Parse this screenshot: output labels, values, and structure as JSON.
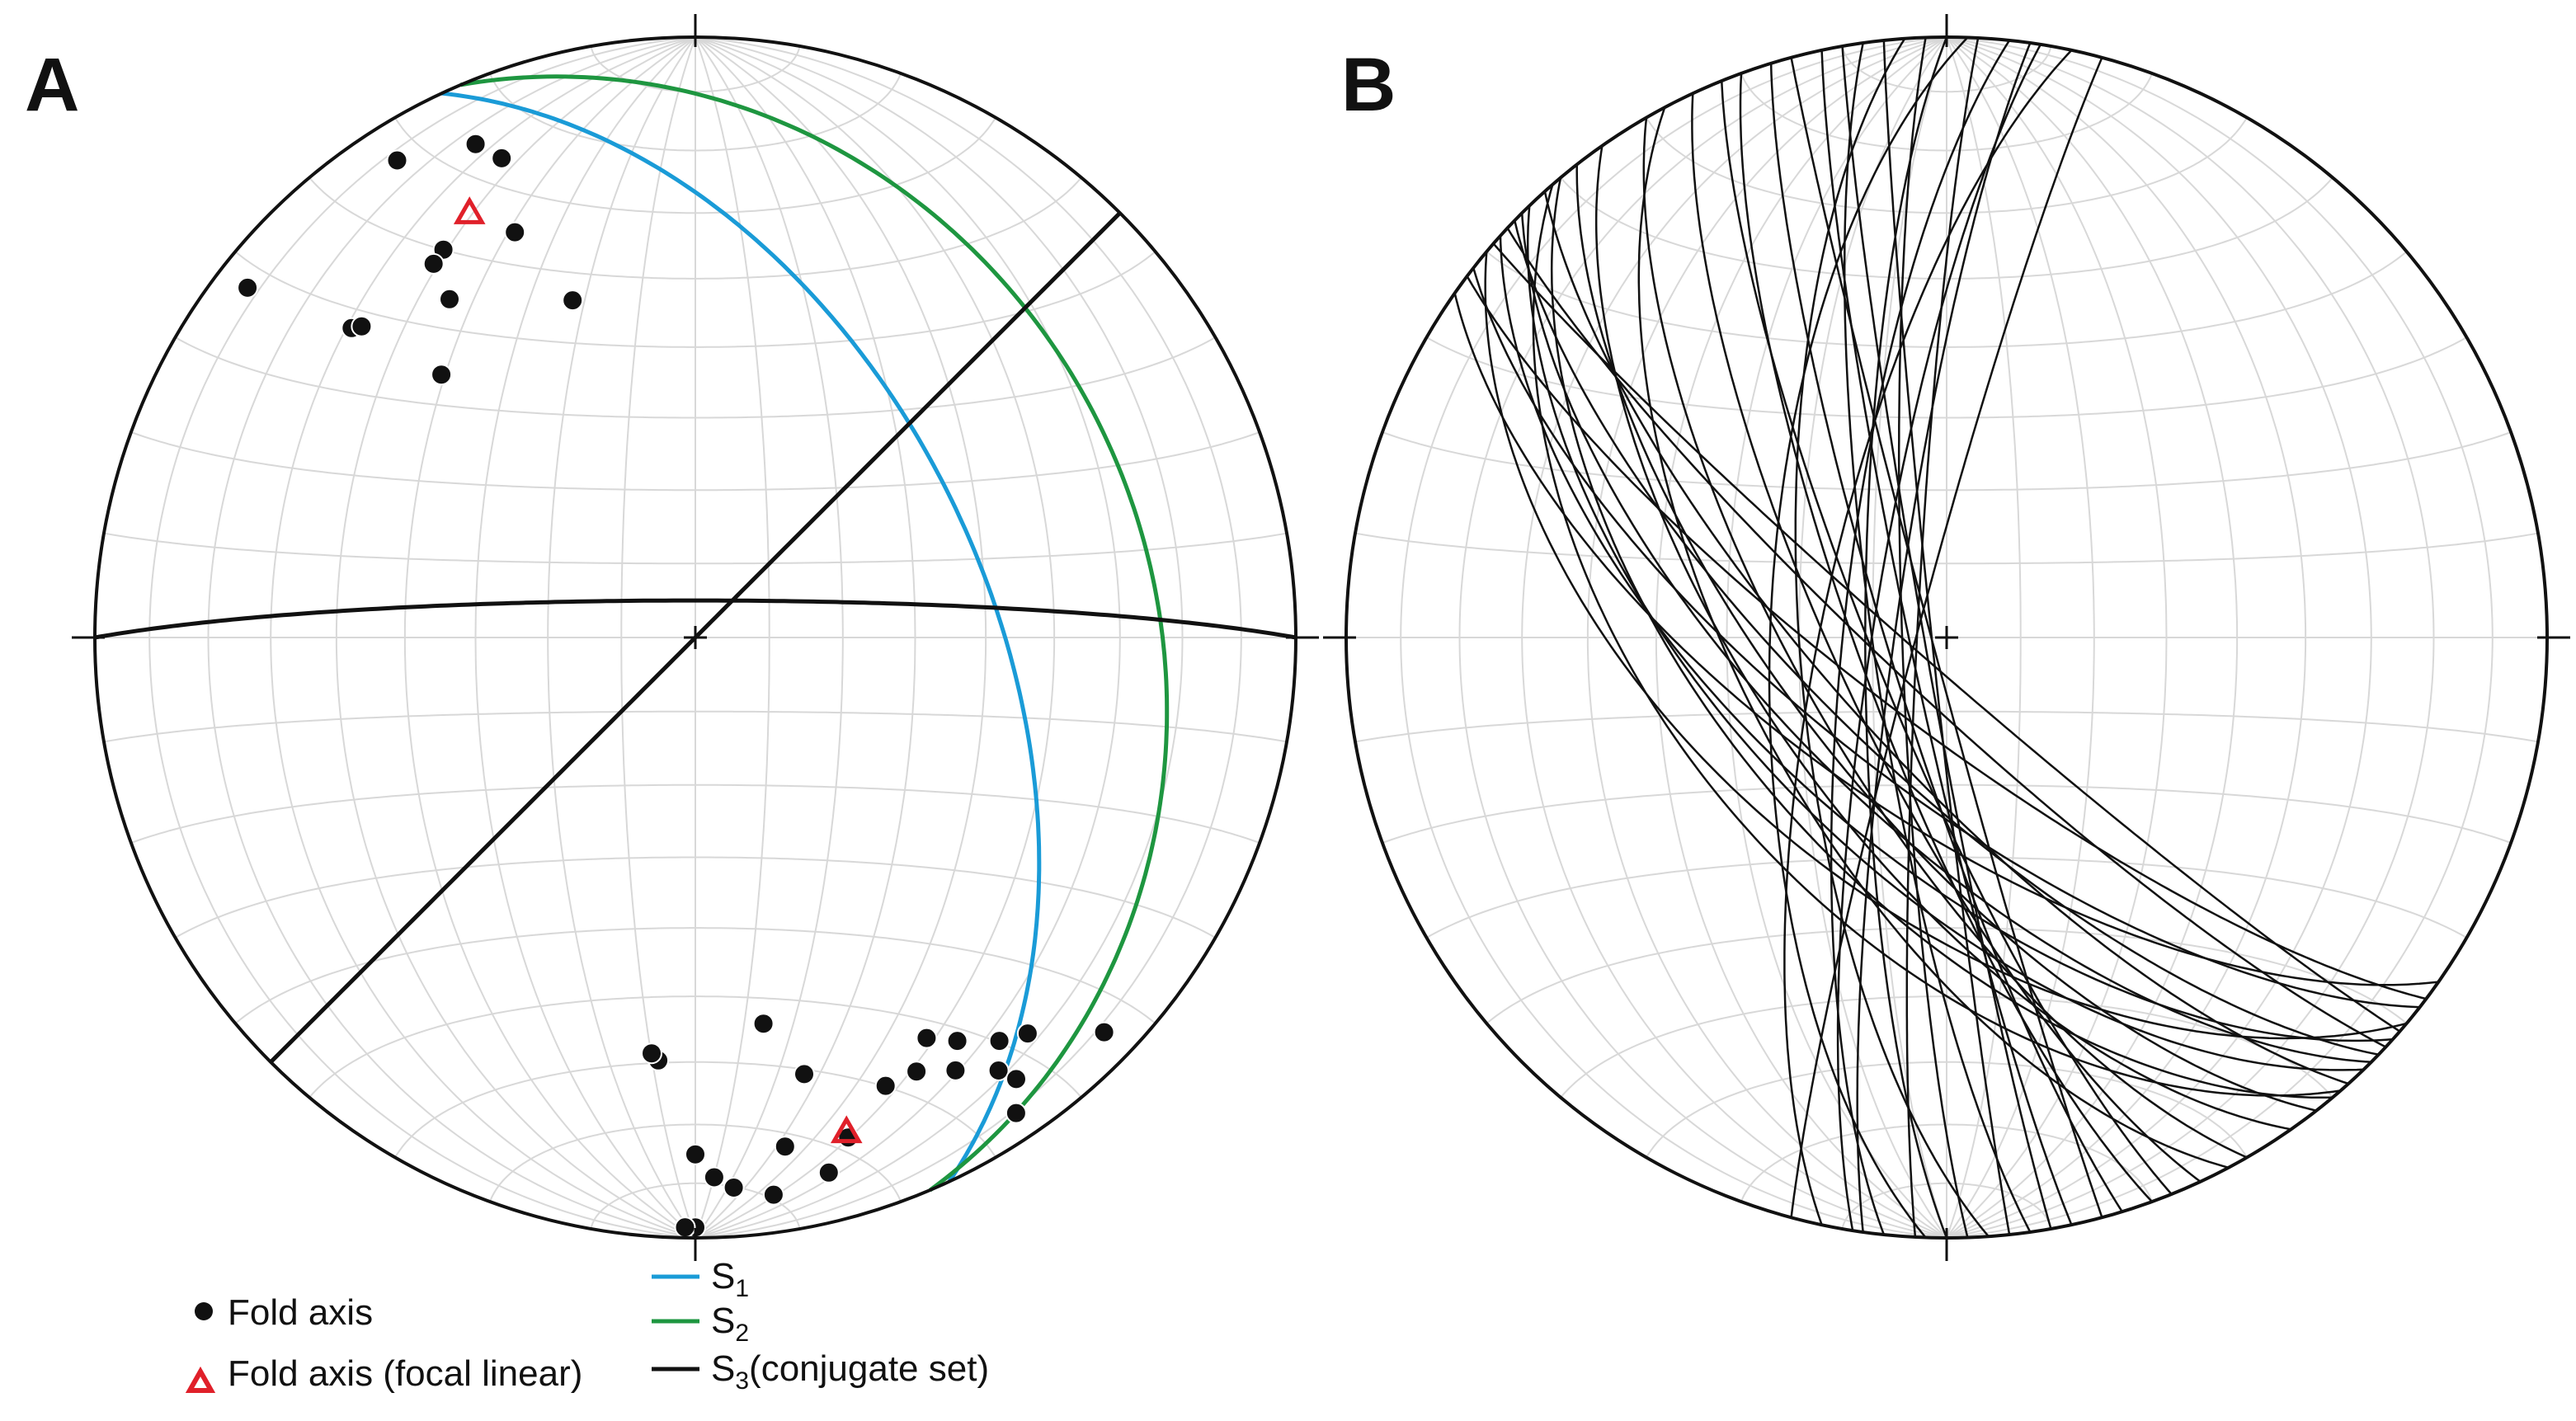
{
  "panels": [
    {
      "id": "A",
      "label": "A"
    },
    {
      "id": "B",
      "label": "B"
    }
  ],
  "legend": {
    "fold_axis": "Fold axis",
    "fold_axis_focal": "Fold axis (focal linear)",
    "s1": {
      "main": "S",
      "sub": "1"
    },
    "s2": {
      "main": "S",
      "sub": "2"
    },
    "s3": {
      "main": "S",
      "sub": "3",
      "suffix": "(conjugate set)"
    }
  },
  "colors": {
    "s1": "#1a9bd7",
    "s2": "#1e9640",
    "s3": "#111111",
    "fold_axis": "#111111",
    "focal": "#e0202a",
    "grid": "#d8d8d8"
  },
  "panel_a": {
    "planes": [
      {
        "name": "S1",
        "strike": 335,
        "dip": 50
      },
      {
        "name": "S2",
        "strike": 337,
        "dip": 25
      },
      {
        "name": "S3a",
        "strike": 270,
        "dip": 85
      },
      {
        "name": "S3b",
        "strike": 225,
        "dip": 90
      }
    ],
    "fold_axes": [
      {
        "trend": 328,
        "plunge": 7
      },
      {
        "trend": 336,
        "plunge": 11
      },
      {
        "trend": 338,
        "plunge": 15
      },
      {
        "trend": 327,
        "plunge": 24
      },
      {
        "trend": 324,
        "plunge": 31
      },
      {
        "trend": 316,
        "plunge": 39
      },
      {
        "trend": 336,
        "plunge": 27
      },
      {
        "trend": 340,
        "plunge": 40
      },
      {
        "trend": 325,
        "plunge": 25
      },
      {
        "trend": 312,
        "plunge": 24
      },
      {
        "trend": 313,
        "plunge": 25
      },
      {
        "trend": 308,
        "plunge": 6
      },
      {
        "trend": 185,
        "plunge": 30
      },
      {
        "trend": 186,
        "plunge": 31
      },
      {
        "trend": 170,
        "plunge": 35
      },
      {
        "trend": 166,
        "plunge": 26
      },
      {
        "trend": 150,
        "plunge": 24
      },
      {
        "trend": 147,
        "plunge": 21
      },
      {
        "trend": 153,
        "plunge": 20
      },
      {
        "trend": 149,
        "plunge": 17
      },
      {
        "trend": 143,
        "plunge": 17
      },
      {
        "trend": 140,
        "plunge": 15
      },
      {
        "trend": 145,
        "plunge": 13
      },
      {
        "trend": 144,
        "plunge": 10
      },
      {
        "trend": 134,
        "plunge": 6
      },
      {
        "trend": 146,
        "plunge": 5
      },
      {
        "trend": 157,
        "plunge": 20
      },
      {
        "trend": 170,
        "plunge": 15
      },
      {
        "trend": 178,
        "plunge": 11
      },
      {
        "trend": 176,
        "plunge": 9
      },
      {
        "trend": 172,
        "plunge": 7
      },
      {
        "trend": 166,
        "plunge": 9
      },
      {
        "trend": 163,
        "plunge": 14
      },
      {
        "trend": 180,
        "plunge": 2
      },
      {
        "trend": 181,
        "plunge": 2
      },
      {
        "trend": 180,
        "plunge": 15
      }
    ],
    "focal_linears": [
      {
        "trend": 332,
        "plunge": 21
      },
      {
        "trend": 163,
        "plunge": 15
      }
    ]
  },
  "panel_b": {
    "planes": [
      {
        "strike": 130,
        "dip": 55
      },
      {
        "strike": 132,
        "dip": 62
      },
      {
        "strike": 135,
        "dip": 66
      },
      {
        "strike": 128,
        "dip": 70
      },
      {
        "strike": 138,
        "dip": 74
      },
      {
        "strike": 140,
        "dip": 58
      },
      {
        "strike": 127,
        "dip": 78
      },
      {
        "strike": 133,
        "dip": 82
      },
      {
        "strike": 142,
        "dip": 68
      },
      {
        "strike": 136,
        "dip": 60
      },
      {
        "strike": 145,
        "dip": 64
      },
      {
        "strike": 125,
        "dip": 66
      },
      {
        "strike": 131,
        "dip": 86
      },
      {
        "strike": 139,
        "dip": 52
      },
      {
        "strike": 134,
        "dip": 72
      },
      {
        "strike": 150,
        "dip": 70
      },
      {
        "strike": 155,
        "dip": 75
      },
      {
        "strike": 160,
        "dip": 78
      },
      {
        "strike": 163,
        "dip": 82
      },
      {
        "strike": 168,
        "dip": 85
      },
      {
        "strike": 172,
        "dip": 80
      },
      {
        "strike": 174,
        "dip": 88
      },
      {
        "strike": 178,
        "dip": 84
      },
      {
        "strike": 180,
        "dip": 79
      },
      {
        "strike": 183,
        "dip": 86
      },
      {
        "strike": 186,
        "dip": 76
      },
      {
        "strike": 188,
        "dip": 83
      },
      {
        "strike": 192,
        "dip": 73
      },
      {
        "strike": 165,
        "dip": 88
      },
      {
        "strike": 158,
        "dip": 80
      },
      {
        "strike": 176,
        "dip": 70
      },
      {
        "strike": 182,
        "dip": 66
      },
      {
        "strike": 170,
        "dip": 87
      },
      {
        "strike": 189,
        "dip": 80
      },
      {
        "strike": 195,
        "dip": 86
      },
      {
        "strike": 152,
        "dip": 62
      }
    ]
  }
}
